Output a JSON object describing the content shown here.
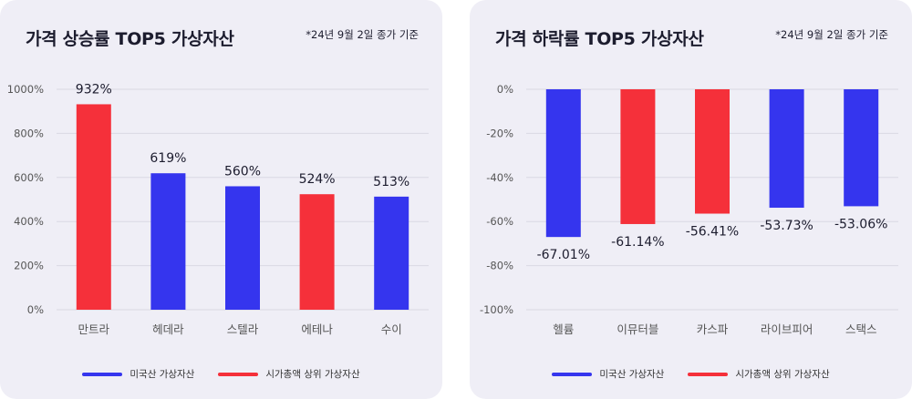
{
  "colors": {
    "us": "#3535ee",
    "top": "#f5303a"
  },
  "legend": {
    "us_label": "미국산 가상자산",
    "top_label": "시가총액 상위 가상자산"
  },
  "chart_data": [
    {
      "type": "bar",
      "title": "가격 상승률 TOP5 가상자산",
      "note": "*24년 9월 2일 종가 기준",
      "categories": [
        "만트라",
        "헤데라",
        "스텔라",
        "에테나",
        "수이"
      ],
      "values": [
        932,
        619,
        560,
        524,
        513
      ],
      "value_labels": [
        "932%",
        "619%",
        "560%",
        "524%",
        "513%"
      ],
      "groups": [
        "top",
        "us",
        "us",
        "top",
        "us"
      ],
      "ylim": [
        0,
        1000
      ],
      "yticks": [
        0,
        200,
        400,
        600,
        800,
        1000
      ],
      "ytick_labels": [
        "0%",
        "200%",
        "400%",
        "600%",
        "800%",
        "1000%"
      ],
      "xlabel": "",
      "ylabel": "",
      "grid": true,
      "legend": "bottom"
    },
    {
      "type": "bar",
      "title": "가격 하락률 TOP5 가상자산",
      "note": "*24년 9월 2일 종가 기준",
      "categories": [
        "헬륨",
        "이뮤터블",
        "카스파",
        "라이브피어",
        "스택스"
      ],
      "values": [
        -67.01,
        -61.14,
        -56.41,
        -53.73,
        -53.06
      ],
      "value_labels": [
        "-67.01%",
        "-61.14%",
        "-56.41%",
        "-53.73%",
        "-53.06%"
      ],
      "groups": [
        "us",
        "top",
        "top",
        "us",
        "us"
      ],
      "ylim": [
        -100,
        0
      ],
      "yticks": [
        0,
        -20,
        -40,
        -60,
        -80,
        -100
      ],
      "ytick_labels": [
        "0%",
        "-20%",
        "-40%",
        "-60%",
        "-80%",
        "-100%"
      ],
      "xlabel": "",
      "ylabel": "",
      "grid": true,
      "legend": "bottom"
    }
  ]
}
